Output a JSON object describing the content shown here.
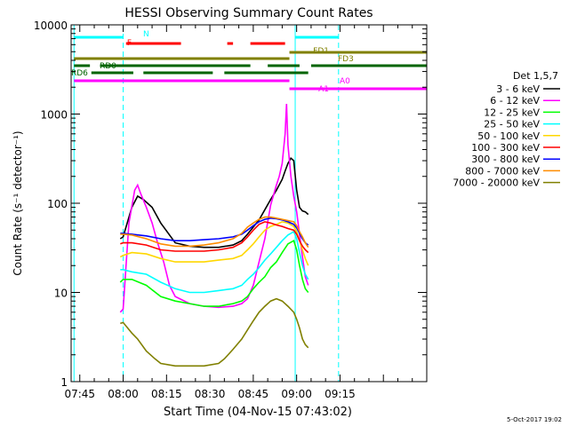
{
  "chart_data": {
    "type": "line",
    "title": "HESSI Observing Summary Count Rates",
    "xlabel": "Start Time (04-Nov-15 07:43:02)",
    "ylabel": "Count Rate (s⁻¹ detector⁻¹)",
    "ylog": true,
    "ylim": [
      1,
      10000
    ],
    "xlim_min": [
      -1,
      122
    ],
    "x_tick_labels": [
      "07:45",
      "08:00",
      "08:15",
      "08:30",
      "08:45",
      "09:00",
      "09:15"
    ],
    "x_tick_min": [
      2,
      17,
      32,
      47,
      62,
      77,
      92
    ],
    "y_tick_labels": [
      "1",
      "10",
      "100",
      "1000",
      "10000"
    ],
    "y_tick_values": [
      1,
      10,
      100,
      1000,
      10000
    ],
    "legend": {
      "placement": "right",
      "title": "Det 1,5,7",
      "entries": [
        "3 - 6 keV",
        "6 - 12 keV",
        "12 - 25 keV",
        "25 - 50 keV",
        "50 - 100 keV",
        "100 - 300 keV",
        "300 - 800 keV",
        "800 - 7000 keV",
        "7000 - 20000 keV"
      ]
    },
    "footer_date": "5-Oct-2017 19:02",
    "series": [
      {
        "name": "3 - 6 keV",
        "color": "#000000",
        "x": [
          16,
          17,
          20,
          22,
          24,
          27,
          30,
          35,
          40,
          45,
          50,
          55,
          58,
          60,
          64,
          68,
          70,
          72,
          73,
          74,
          75,
          76,
          77,
          78,
          79,
          80,
          81
        ],
        "y": [
          40,
          42,
          90,
          120,
          110,
          90,
          60,
          36,
          33,
          32,
          32,
          34,
          38,
          45,
          65,
          110,
          140,
          185,
          230,
          280,
          320,
          300,
          140,
          90,
          82,
          80,
          75
        ]
      },
      {
        "name": "6 - 12 keV",
        "color": "#ff00ff",
        "x": [
          16,
          17,
          19,
          21,
          22,
          23,
          25,
          27,
          29,
          31,
          33,
          35,
          40,
          45,
          50,
          55,
          58,
          60,
          62,
          64,
          66,
          68,
          70,
          71,
          72,
          73,
          73.5,
          74,
          75,
          76,
          77,
          78,
          79,
          80,
          81
        ],
        "y": [
          6,
          6.5,
          60,
          140,
          160,
          130,
          90,
          60,
          35,
          22,
          12,
          9,
          7.5,
          7,
          6.8,
          7,
          7.5,
          8.5,
          12,
          22,
          40,
          95,
          160,
          200,
          280,
          600,
          1300,
          450,
          200,
          120,
          80,
          45,
          25,
          15,
          12
        ]
      },
      {
        "name": "12 - 25 keV",
        "color": "#00ff00",
        "x": [
          16,
          17,
          20,
          25,
          30,
          35,
          40,
          45,
          50,
          55,
          58,
          60,
          62,
          64,
          66,
          68,
          70,
          72,
          74,
          76,
          77,
          78,
          79,
          80,
          81
        ],
        "y": [
          13,
          14,
          14,
          12,
          9,
          8,
          7.5,
          7,
          7,
          7.5,
          8,
          9,
          11,
          13,
          15,
          19,
          22,
          28,
          35,
          38,
          30,
          20,
          14,
          11,
          10
        ]
      },
      {
        "name": "25 - 50 keV",
        "color": "#00ffff",
        "x": [
          16,
          17,
          20,
          25,
          30,
          35,
          40,
          45,
          50,
          55,
          58,
          60,
          62,
          64,
          66,
          68,
          70,
          72,
          74,
          76,
          77,
          78,
          79,
          80,
          81
        ],
        "y": [
          18,
          18,
          17,
          16,
          13,
          11,
          10,
          10,
          10.5,
          11,
          12,
          14,
          16,
          19,
          23,
          27,
          32,
          38,
          44,
          48,
          40,
          28,
          20,
          16,
          14
        ]
      },
      {
        "name": "50 - 100 keV",
        "color": "#ffd700",
        "x": [
          16,
          17,
          20,
          25,
          30,
          35,
          40,
          45,
          50,
          55,
          58,
          60,
          62,
          64,
          66,
          68,
          70,
          72,
          74,
          76,
          77,
          78,
          79,
          80,
          81
        ],
        "y": [
          25,
          26,
          28,
          27,
          24,
          22,
          22,
          22,
          23,
          24,
          26,
          30,
          35,
          42,
          50,
          55,
          58,
          62,
          60,
          55,
          48,
          38,
          30,
          24,
          20
        ]
      },
      {
        "name": "100 - 300 keV",
        "color": "#ff0000",
        "x": [
          16,
          17,
          20,
          25,
          30,
          35,
          40,
          45,
          50,
          55,
          58,
          60,
          62,
          64,
          66,
          68,
          70,
          72,
          74,
          76,
          77,
          78,
          79,
          80,
          81
        ],
        "y": [
          35,
          36,
          36,
          34,
          30,
          29,
          29,
          29,
          30,
          32,
          36,
          42,
          50,
          58,
          62,
          60,
          57,
          55,
          52,
          50,
          45,
          38,
          33,
          30,
          28
        ]
      },
      {
        "name": "300 - 800 keV",
        "color": "#0000ff",
        "x": [
          16,
          17,
          20,
          25,
          30,
          35,
          40,
          45,
          50,
          55,
          58,
          60,
          62,
          64,
          66,
          68,
          70,
          72,
          74,
          76,
          77,
          78,
          79,
          80,
          81
        ],
        "y": [
          46,
          46,
          45,
          43,
          40,
          38,
          38,
          39,
          40,
          42,
          45,
          50,
          56,
          62,
          66,
          68,
          67,
          65,
          62,
          58,
          53,
          46,
          40,
          36,
          34
        ]
      },
      {
        "name": "800 - 7000 keV",
        "color": "#ff8c00",
        "x": [
          16,
          17,
          20,
          25,
          30,
          35,
          40,
          45,
          50,
          55,
          58,
          60,
          62,
          64,
          66,
          68,
          70,
          72,
          74,
          76,
          77,
          78,
          79,
          80,
          81
        ],
        "y": [
          45,
          45,
          44,
          40,
          35,
          33,
          33,
          34,
          36,
          40,
          46,
          54,
          60,
          66,
          70,
          70,
          68,
          66,
          64,
          62,
          56,
          48,
          42,
          36,
          32
        ]
      },
      {
        "name": "7000 - 20000 keV",
        "color": "#808000",
        "x": [
          16,
          17,
          20,
          22,
          25,
          28,
          30,
          35,
          40,
          45,
          50,
          52,
          55,
          58,
          60,
          62,
          64,
          66,
          68,
          70,
          72,
          74,
          76,
          77,
          78,
          79,
          80,
          81
        ],
        "y": [
          4.5,
          4.6,
          3.5,
          3,
          2.2,
          1.8,
          1.6,
          1.5,
          1.5,
          1.5,
          1.6,
          1.8,
          2.3,
          3,
          3.8,
          4.8,
          6,
          7,
          8,
          8.5,
          8,
          7,
          6,
          5,
          4,
          3,
          2.6,
          2.4
        ]
      }
    ],
    "flag_bars": [
      {
        "label": "N",
        "color": "#00ffff",
        "segments": [
          [
            0,
            17
          ],
          [
            76.5,
            91.5
          ]
        ]
      },
      {
        "label": "F",
        "color": "#ff0000",
        "segments": [
          [
            18,
            37
          ],
          [
            53,
            55
          ],
          [
            61,
            73
          ]
        ]
      },
      {
        "label": "FD1",
        "color": "#808000",
        "segments": [
          [
            0,
            74.5
          ]
        ]
      },
      {
        "label": "FD3",
        "color": "#808000",
        "segments": [
          [
            74.5,
            122
          ]
        ]
      },
      {
        "label": "RD0",
        "color": "#006400",
        "segments": [
          [
            0,
            5.5
          ],
          [
            9,
            61
          ],
          [
            67,
            78
          ],
          [
            82,
            122
          ]
        ]
      },
      {
        "label": "RD6",
        "color": "#006400",
        "segments": [
          [
            6,
            20.5
          ],
          [
            24,
            48
          ],
          [
            52,
            81
          ]
        ]
      },
      {
        "label": "A0",
        "color": "#ff00ff",
        "segments": [
          [
            0,
            74.5
          ]
        ]
      },
      {
        "label": "A1",
        "color": "#ff00ff",
        "segments": [
          [
            74.5,
            122
          ]
        ]
      }
    ],
    "vlines": [
      {
        "x_min": 0,
        "color": "#00ffff",
        "style": "solid"
      },
      {
        "x_min": 76.5,
        "color": "#00ffff",
        "style": "solid"
      },
      {
        "x_min": 17,
        "color": "#00ffff",
        "style": "dashed"
      },
      {
        "x_min": 91.5,
        "color": "#00ffff",
        "style": "dashed"
      }
    ]
  }
}
